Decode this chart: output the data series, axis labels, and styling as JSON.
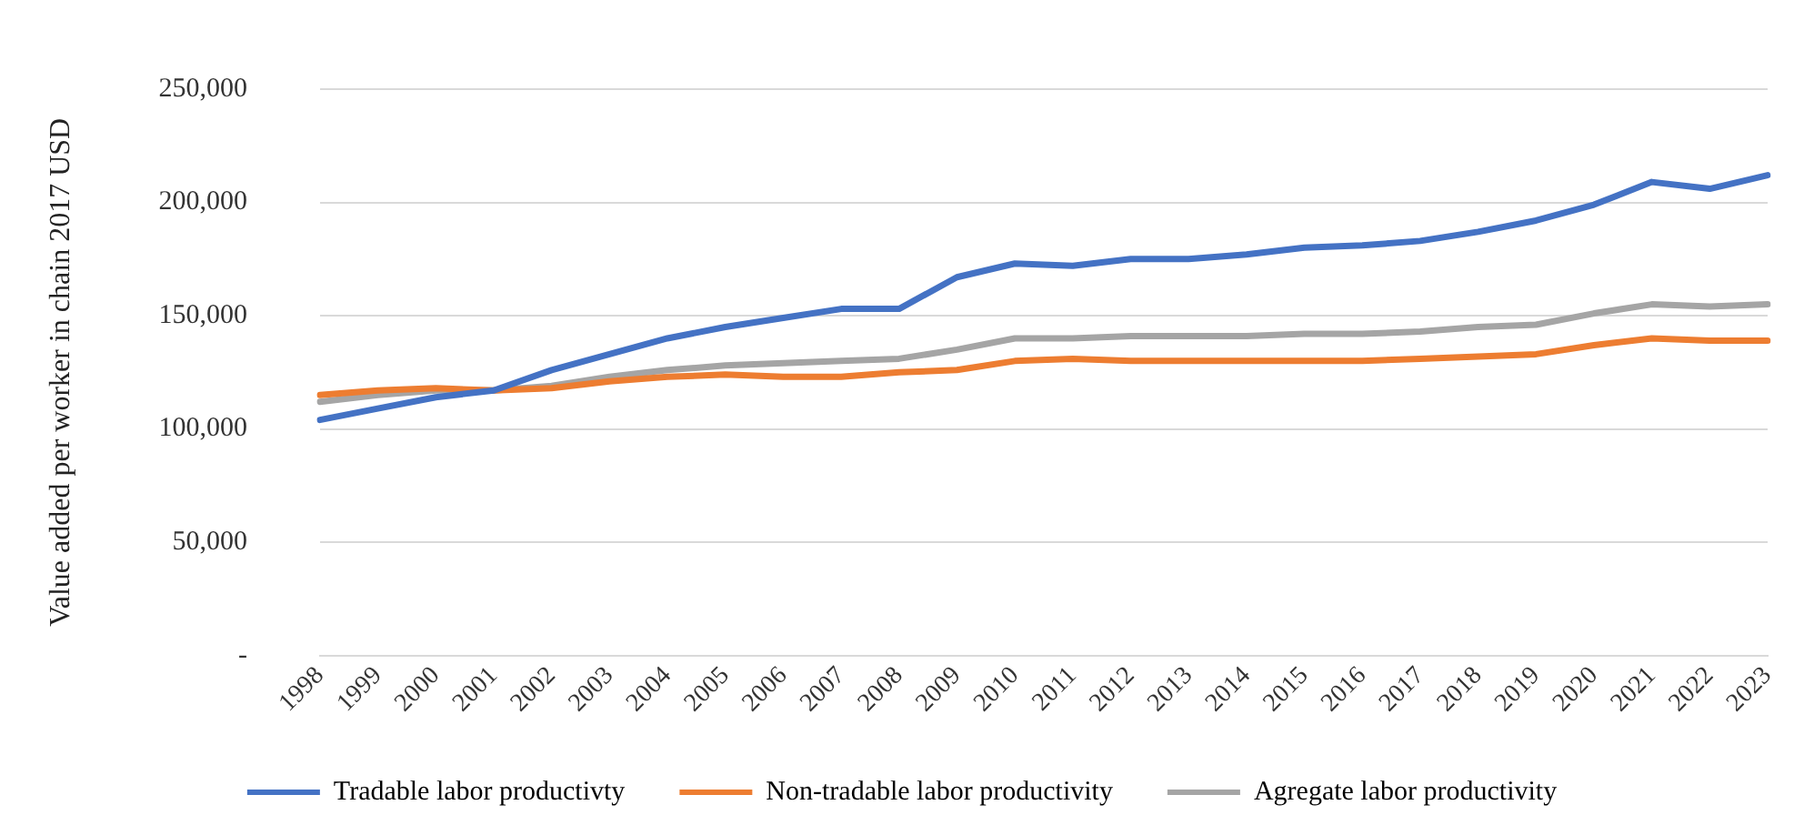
{
  "chart_data": {
    "type": "line",
    "ylabel": "Value added per worker in chain 2017 USD",
    "categories": [
      "1998",
      "1999",
      "2000",
      "2001",
      "2002",
      "2003",
      "2004",
      "2005",
      "2006",
      "2007",
      "2008",
      "2009",
      "2010",
      "2011",
      "2012",
      "2013",
      "2014",
      "2015",
      "2016",
      "2017",
      "2018",
      "2019",
      "2020",
      "2021",
      "2022",
      "2023"
    ],
    "series": [
      {
        "name": "Tradable labor productivty",
        "color": "#4472c4",
        "values": [
          104000,
          109000,
          114000,
          117000,
          126000,
          133000,
          140000,
          145000,
          149000,
          153000,
          153000,
          167000,
          173000,
          172000,
          175000,
          175000,
          177000,
          180000,
          181000,
          183000,
          187000,
          192000,
          199000,
          209000,
          206000,
          212000
        ]
      },
      {
        "name": "Non-tradable labor productivity",
        "color": "#ed7d31",
        "values": [
          115000,
          117000,
          118000,
          117000,
          118000,
          121000,
          123000,
          124000,
          123000,
          123000,
          125000,
          126000,
          130000,
          131000,
          130000,
          130000,
          130000,
          130000,
          130000,
          131000,
          132000,
          133000,
          137000,
          140000,
          139000,
          139000
        ]
      },
      {
        "name": "Agregate labor productivity",
        "color": "#a5a5a5",
        "values": [
          112000,
          115000,
          117000,
          117000,
          119000,
          123000,
          126000,
          128000,
          129000,
          130000,
          131000,
          135000,
          140000,
          140000,
          141000,
          141000,
          141000,
          142000,
          142000,
          143000,
          145000,
          146000,
          151000,
          155000,
          154000,
          155000
        ]
      }
    ],
    "ylim": [
      0,
      250000
    ],
    "yticks": [
      {
        "value": 0,
        "label": "-"
      },
      {
        "value": 50000,
        "label": "50,000"
      },
      {
        "value": 100000,
        "label": "100,000"
      },
      {
        "value": 150000,
        "label": "150,000"
      },
      {
        "value": 200000,
        "label": "200,000"
      },
      {
        "value": 250000,
        "label": "250,000"
      }
    ],
    "grid": "y",
    "legend": "bottom",
    "marker": "none",
    "line_style": "solid"
  }
}
